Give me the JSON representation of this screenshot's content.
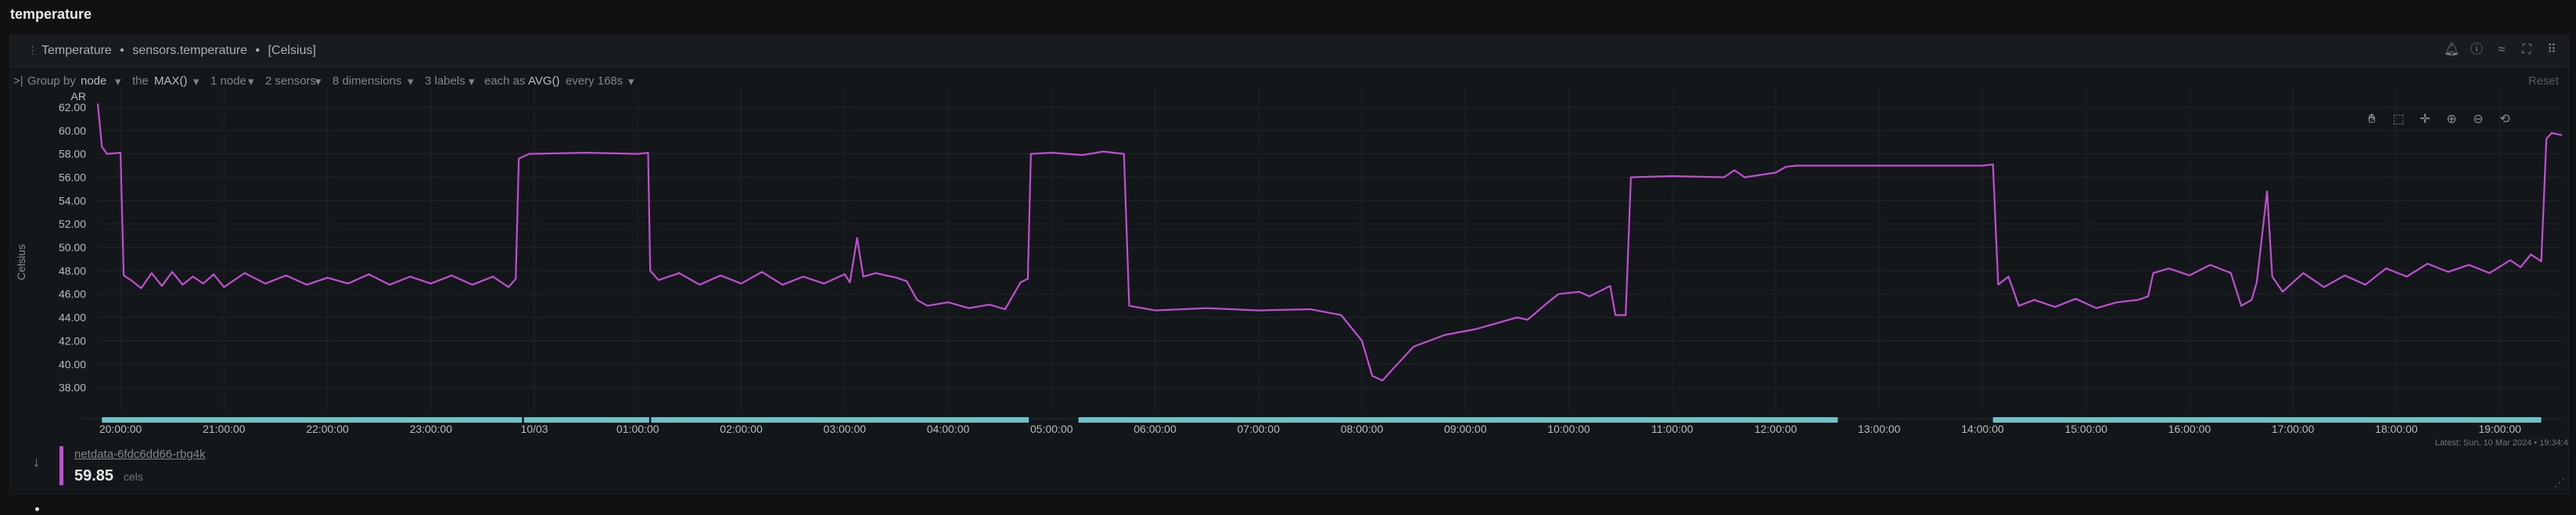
{
  "page": {
    "title": "temperature"
  },
  "card": {
    "header": {
      "title": "Temperature",
      "context": "sensors.temperature",
      "units": "[Celsius]",
      "sep": "•"
    },
    "filters": {
      "group_by_prefix": "Group by",
      "group_by_value": "node",
      "the": "the",
      "agg": "MAX()",
      "nodes": "1 node",
      "sensors": "2 sensors",
      "dimensions": "8 dimensions",
      "labels": "3 labels",
      "each_as": "each as",
      "each_value": "AVG()",
      "every": "every 168s"
    },
    "reset": "Reset",
    "toolbox_icons": [
      "pan-icon",
      "select-icon",
      "crosshair-icon",
      "zoom-in-icon",
      "zoom-out-icon",
      "zoom-reset-icon"
    ]
  },
  "chart_data": {
    "type": "line",
    "ylabel": "Celsius",
    "y_top_label": "AR",
    "ylim": [
      36.0,
      63.0
    ],
    "yticks": [
      "62.00",
      "60.00",
      "58.00",
      "56.00",
      "54.00",
      "52.00",
      "50.00",
      "48.00",
      "46.00",
      "44.00",
      "42.00",
      "40.00",
      "38.00"
    ],
    "xticks": [
      "20:00:00",
      "21:00:00",
      "22:00:00",
      "23:00:00",
      "10/03",
      "01:00:00",
      "02:00:00",
      "03:00:00",
      "04:00:00",
      "05:00:00",
      "06:00:00",
      "07:00:00",
      "08:00:00",
      "09:00:00",
      "10:00:00",
      "11:00:00",
      "12:00:00",
      "13:00:00",
      "14:00:00",
      "15:00:00",
      "16:00:00",
      "17:00:00",
      "18:00:00",
      "19:00:00"
    ],
    "x_start_hour": 19.78,
    "x_end_hour": 43.6,
    "series": [
      {
        "name": "netdata-6fdc6dd66-rbg4k",
        "color": "#c14fd3",
        "points": [
          [
            19.78,
            62.3
          ],
          [
            19.82,
            58.6
          ],
          [
            19.87,
            58.0
          ],
          [
            20.0,
            58.1
          ],
          [
            20.03,
            47.6
          ],
          [
            20.1,
            47.2
          ],
          [
            20.2,
            46.5
          ],
          [
            20.3,
            47.8
          ],
          [
            20.4,
            46.7
          ],
          [
            20.5,
            47.9
          ],
          [
            20.6,
            46.8
          ],
          [
            20.7,
            47.5
          ],
          [
            20.8,
            46.9
          ],
          [
            20.9,
            47.7
          ],
          [
            21.0,
            46.6
          ],
          [
            21.2,
            47.8
          ],
          [
            21.4,
            46.9
          ],
          [
            21.6,
            47.6
          ],
          [
            21.8,
            46.8
          ],
          [
            22.0,
            47.4
          ],
          [
            22.2,
            46.9
          ],
          [
            22.4,
            47.7
          ],
          [
            22.6,
            46.8
          ],
          [
            22.8,
            47.5
          ],
          [
            23.0,
            46.9
          ],
          [
            23.2,
            47.6
          ],
          [
            23.4,
            46.8
          ],
          [
            23.6,
            47.5
          ],
          [
            23.75,
            46.6
          ],
          [
            23.82,
            47.3
          ],
          [
            23.85,
            57.6
          ],
          [
            23.95,
            58.0
          ],
          [
            24.5,
            58.1
          ],
          [
            25.0,
            58.0
          ],
          [
            25.1,
            58.1
          ],
          [
            25.12,
            48.0
          ],
          [
            25.2,
            47.2
          ],
          [
            25.4,
            47.8
          ],
          [
            25.6,
            46.8
          ],
          [
            25.8,
            47.6
          ],
          [
            26.0,
            46.9
          ],
          [
            26.2,
            47.9
          ],
          [
            26.4,
            46.8
          ],
          [
            26.6,
            47.5
          ],
          [
            26.8,
            46.9
          ],
          [
            27.0,
            47.7
          ],
          [
            27.05,
            47.0
          ],
          [
            27.12,
            50.8
          ],
          [
            27.18,
            47.5
          ],
          [
            27.3,
            47.8
          ],
          [
            27.5,
            47.4
          ],
          [
            27.6,
            47.1
          ],
          [
            27.7,
            45.5
          ],
          [
            27.8,
            45.0
          ],
          [
            28.0,
            45.3
          ],
          [
            28.2,
            44.8
          ],
          [
            28.4,
            45.1
          ],
          [
            28.55,
            44.7
          ],
          [
            28.7,
            47.0
          ],
          [
            28.77,
            47.3
          ],
          [
            28.8,
            58.0
          ],
          [
            29.0,
            58.1
          ],
          [
            29.3,
            57.9
          ],
          [
            29.5,
            58.2
          ],
          [
            29.7,
            58.0
          ],
          [
            29.75,
            45.0
          ],
          [
            30.0,
            44.6
          ],
          [
            30.5,
            44.8
          ],
          [
            31.0,
            44.6
          ],
          [
            31.5,
            44.7
          ],
          [
            31.8,
            44.2
          ],
          [
            32.0,
            42.0
          ],
          [
            32.1,
            39.0
          ],
          [
            32.2,
            38.6
          ],
          [
            32.3,
            39.6
          ],
          [
            32.5,
            41.5
          ],
          [
            32.8,
            42.5
          ],
          [
            33.1,
            43.0
          ],
          [
            33.3,
            43.5
          ],
          [
            33.5,
            44.0
          ],
          [
            33.6,
            43.8
          ],
          [
            33.8,
            45.3
          ],
          [
            33.9,
            46.0
          ],
          [
            34.1,
            46.2
          ],
          [
            34.2,
            45.8
          ],
          [
            34.4,
            46.7
          ],
          [
            34.45,
            44.2
          ],
          [
            34.55,
            44.2
          ],
          [
            34.6,
            56.0
          ],
          [
            35.0,
            56.1
          ],
          [
            35.5,
            56.0
          ],
          [
            35.6,
            56.6
          ],
          [
            35.7,
            56.0
          ],
          [
            36.0,
            56.4
          ],
          [
            36.1,
            56.9
          ],
          [
            36.2,
            57.0
          ],
          [
            37.0,
            57.0
          ],
          [
            37.5,
            57.0
          ],
          [
            38.0,
            57.0
          ],
          [
            38.1,
            57.1
          ],
          [
            38.15,
            46.8
          ],
          [
            38.25,
            47.5
          ],
          [
            38.35,
            45.0
          ],
          [
            38.5,
            45.5
          ],
          [
            38.7,
            44.9
          ],
          [
            38.9,
            45.6
          ],
          [
            39.1,
            44.8
          ],
          [
            39.3,
            45.3
          ],
          [
            39.5,
            45.5
          ],
          [
            39.6,
            45.8
          ],
          [
            39.65,
            47.8
          ],
          [
            39.8,
            48.2
          ],
          [
            40.0,
            47.6
          ],
          [
            40.2,
            48.5
          ],
          [
            40.4,
            47.8
          ],
          [
            40.5,
            45.0
          ],
          [
            40.6,
            45.5
          ],
          [
            40.65,
            47.0
          ],
          [
            40.75,
            54.8
          ],
          [
            40.8,
            47.5
          ],
          [
            40.9,
            46.2
          ],
          [
            41.1,
            47.8
          ],
          [
            41.3,
            46.6
          ],
          [
            41.5,
            47.6
          ],
          [
            41.7,
            46.8
          ],
          [
            41.9,
            48.2
          ],
          [
            42.1,
            47.5
          ],
          [
            42.3,
            48.6
          ],
          [
            42.5,
            47.9
          ],
          [
            42.7,
            48.5
          ],
          [
            42.9,
            47.8
          ],
          [
            43.1,
            48.9
          ],
          [
            43.2,
            48.3
          ],
          [
            43.3,
            49.4
          ],
          [
            43.4,
            48.8
          ],
          [
            43.45,
            59.3
          ],
          [
            43.5,
            59.8
          ],
          [
            43.6,
            59.6
          ]
        ]
      }
    ],
    "annotation_segments": [
      [
        19.82,
        23.88
      ],
      [
        23.9,
        25.11
      ],
      [
        25.13,
        28.78
      ],
      [
        29.26,
        36.6
      ],
      [
        38.1,
        43.4
      ]
    ],
    "annotation_color": "#6ec1c8"
  },
  "legend": {
    "name": "netdata-6fdc6dd66-rbg4k",
    "value": "59.85",
    "unit": "cels"
  },
  "latest": "Latest: Sun, 10 Mar 2024 • 19:34:4"
}
